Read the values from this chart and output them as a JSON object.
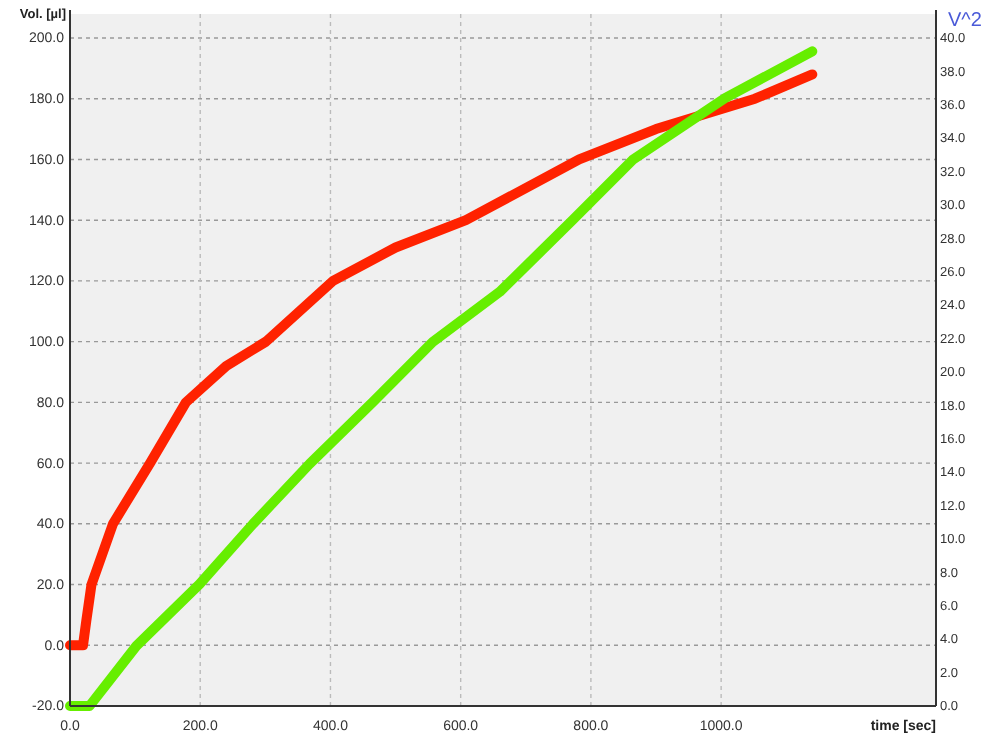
{
  "chart_data": {
    "type": "line",
    "xlabel": "time [sec]",
    "ylabel": "Vol. [µl]",
    "y2label": "V^2",
    "xlim": [
      0,
      1330
    ],
    "xticks": [
      {
        "value": 0,
        "label": "0.0"
      },
      {
        "value": 200,
        "label": "200.0"
      },
      {
        "value": 400,
        "label": "400.0"
      },
      {
        "value": 600,
        "label": "600.0"
      },
      {
        "value": 800,
        "label": "800.0"
      },
      {
        "value": 1000,
        "label": "1000.0"
      }
    ],
    "ylim": [
      -20,
      200
    ],
    "yticks": [
      {
        "value": -20,
        "label": "-20.0"
      },
      {
        "value": 0,
        "label": "0.0"
      },
      {
        "value": 20,
        "label": "20.0"
      },
      {
        "value": 40,
        "label": "40.0"
      },
      {
        "value": 60,
        "label": "60.0"
      },
      {
        "value": 80,
        "label": "80.0"
      },
      {
        "value": 100,
        "label": "100.0"
      },
      {
        "value": 120,
        "label": "120.0"
      },
      {
        "value": 140,
        "label": "140.0"
      },
      {
        "value": 160,
        "label": "160.0"
      },
      {
        "value": 180,
        "label": "180.0"
      },
      {
        "value": 200,
        "label": "200.0"
      }
    ],
    "y2lim": [
      0,
      40
    ],
    "y2ticks": [
      {
        "value": 0,
        "label": "0.0"
      },
      {
        "value": 2,
        "label": "2.0"
      },
      {
        "value": 4,
        "label": "4.0"
      },
      {
        "value": 6,
        "label": "6.0"
      },
      {
        "value": 8,
        "label": "8.0"
      },
      {
        "value": 10,
        "label": "10.0"
      },
      {
        "value": 12,
        "label": "12.0"
      },
      {
        "value": 14,
        "label": "14.0"
      },
      {
        "value": 16,
        "label": "16.0"
      },
      {
        "value": 18,
        "label": "18.0"
      },
      {
        "value": 20,
        "label": "20.0"
      },
      {
        "value": 22,
        "label": "22.0"
      },
      {
        "value": 24,
        "label": "24.0"
      },
      {
        "value": 26,
        "label": "26.0"
      },
      {
        "value": 28,
        "label": "28.0"
      },
      {
        "value": 30,
        "label": "30.0"
      },
      {
        "value": 32,
        "label": "32.0"
      },
      {
        "value": 34,
        "label": "34.0"
      },
      {
        "value": 36,
        "label": "36.0"
      },
      {
        "value": 38,
        "label": "38.0"
      },
      {
        "value": 40,
        "label": "40.0"
      }
    ],
    "grid": true,
    "marker": "none",
    "line_style": "solid",
    "series": [
      {
        "color": "#ff2200",
        "x": [
          0,
          20,
          25,
          33,
          66,
          123,
          178,
          240,
          301,
          404,
          500,
          608,
          782,
          900,
          1052,
          1140
        ],
        "values": [
          0,
          0,
          8,
          20,
          40,
          60,
          80,
          92,
          100,
          120,
          131,
          140,
          160,
          170,
          180,
          188
        ]
      },
      {
        "color": "#66ee00",
        "axis": "y2",
        "x": [
          0,
          30,
          102,
          199,
          281,
          368,
          465,
          557,
          660,
          772,
          864,
          1006,
          1140
        ],
        "values": [
          0,
          0,
          3.6,
          7.3,
          10.9,
          14.5,
          18.2,
          21.8,
          24.8,
          29.1,
          32.7,
          36.4,
          39.2
        ]
      }
    ]
  }
}
